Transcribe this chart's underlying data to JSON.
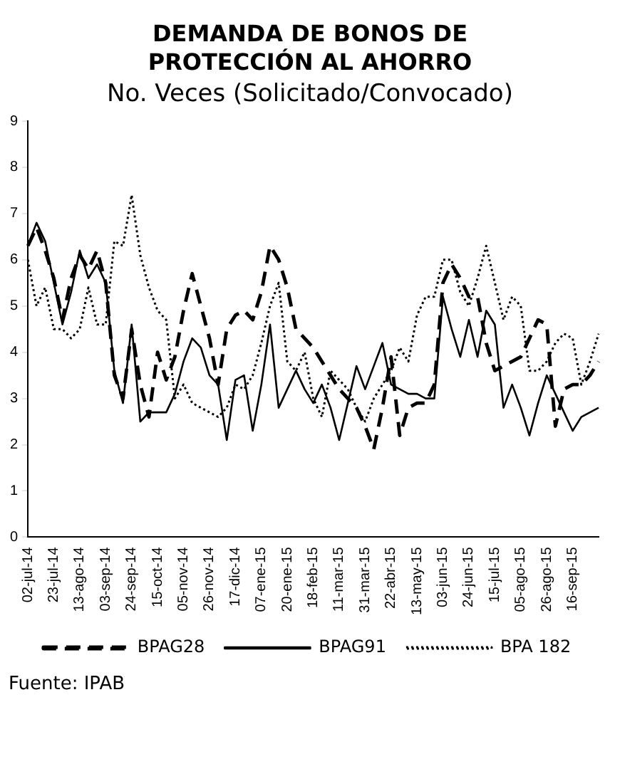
{
  "chart_data": {
    "type": "line",
    "title": "DEMANDA DE BONOS DE PROTECCIÓN AL AHORRO",
    "subtitle": "No. Veces (Solicitado/Convocado)",
    "categories": [
      "02-jul-14",
      null,
      null,
      "23-jul-14",
      null,
      null,
      "13-ago-14",
      null,
      null,
      "03-sep-14",
      null,
      null,
      "24-sep-14",
      null,
      null,
      "15-oct-14",
      null,
      null,
      "05-nov-14",
      null,
      null,
      "26-nov-14",
      null,
      null,
      "17-dic-14",
      null,
      null,
      "07-ene-15",
      null,
      null,
      "20-ene-15",
      null,
      null,
      "18-feb-15",
      null,
      null,
      "11-mar-15",
      null,
      null,
      "31-mar-15",
      null,
      null,
      "22-abr-15",
      null,
      null,
      "13-may-15",
      null,
      null,
      "03-jun-15",
      null,
      null,
      "24-jun-15",
      null,
      null,
      "15-jul-15",
      null,
      null,
      "05-ago-15",
      null,
      null,
      "26-ago-15",
      null,
      null,
      "16-sep-15",
      null,
      null,
      null
    ],
    "series": [
      {
        "name": "BPAG28",
        "color": "#000000",
        "line_style": "dashed",
        "values": [
          6.3,
          6.7,
          6.2,
          5.6,
          4.7,
          5.6,
          6.1,
          5.8,
          6.2,
          5.5,
          3.5,
          3.0,
          4.5,
          3.3,
          2.6,
          4.0,
          3.4,
          3.9,
          4.9,
          5.7,
          5.0,
          4.3,
          3.3,
          4.5,
          4.8,
          4.9,
          4.7,
          5.3,
          6.3,
          6.0,
          5.4,
          4.5,
          4.3,
          4.1,
          3.8,
          3.5,
          3.2,
          3.0,
          2.8,
          2.4,
          1.9,
          2.8,
          3.9,
          2.2,
          2.8,
          2.9,
          2.9,
          3.3,
          5.5,
          5.9,
          5.6,
          5.2,
          5.2,
          4.2,
          3.6,
          3.7,
          3.8,
          3.9,
          4.3,
          4.7,
          4.6,
          2.4,
          3.2,
          3.3,
          3.3,
          3.5,
          3.8
        ]
      },
      {
        "name": "BPAG91",
        "color": "#000000",
        "line_style": "solid",
        "values": [
          6.3,
          6.8,
          6.4,
          5.5,
          4.6,
          5.3,
          6.2,
          5.6,
          5.9,
          5.5,
          3.6,
          2.9,
          4.6,
          2.5,
          2.7,
          2.7,
          2.7,
          3.1,
          3.8,
          4.3,
          4.1,
          3.5,
          3.3,
          2.1,
          3.4,
          3.5,
          2.3,
          3.3,
          4.6,
          2.8,
          3.2,
          3.6,
          3.2,
          2.9,
          3.3,
          2.8,
          2.1,
          2.9,
          3.7,
          3.2,
          3.7,
          4.2,
          3.3,
          3.2,
          3.1,
          3.1,
          3.0,
          3.0,
          5.2,
          4.5,
          3.9,
          4.7,
          3.9,
          4.9,
          4.6,
          2.8,
          3.3,
          2.8,
          2.2,
          2.9,
          3.5,
          3.1,
          2.7,
          2.3,
          2.6,
          2.7,
          2.8
        ]
      },
      {
        "name": "BPA 182",
        "color": "#000000",
        "line_style": "dotted",
        "values": [
          6.0,
          5.0,
          5.4,
          4.5,
          4.5,
          4.3,
          4.5,
          5.4,
          4.6,
          4.6,
          6.4,
          6.3,
          7.4,
          6.1,
          5.4,
          4.9,
          4.7,
          3.0,
          3.3,
          2.9,
          2.8,
          2.7,
          2.6,
          2.8,
          3.3,
          3.2,
          3.5,
          4.2,
          5.0,
          5.5,
          3.8,
          3.6,
          4.0,
          3.0,
          2.6,
          3.6,
          3.4,
          3.2,
          2.8,
          2.5,
          3.0,
          3.3,
          3.6,
          4.1,
          3.8,
          4.8,
          5.2,
          5.2,
          6.0,
          6.0,
          5.3,
          5.0,
          5.6,
          6.3,
          5.5,
          4.7,
          5.2,
          5.0,
          3.6,
          3.6,
          3.8,
          4.2,
          4.4,
          4.3,
          3.3,
          3.8,
          4.4
        ]
      }
    ],
    "ylim": [
      0,
      9
    ],
    "yticks": [
      0,
      1,
      2,
      3,
      4,
      5,
      6,
      7,
      8,
      9
    ],
    "grid": false,
    "legend": "bottom",
    "marker": "none",
    "annotations": [
      "Fuente: IPAB"
    ]
  }
}
